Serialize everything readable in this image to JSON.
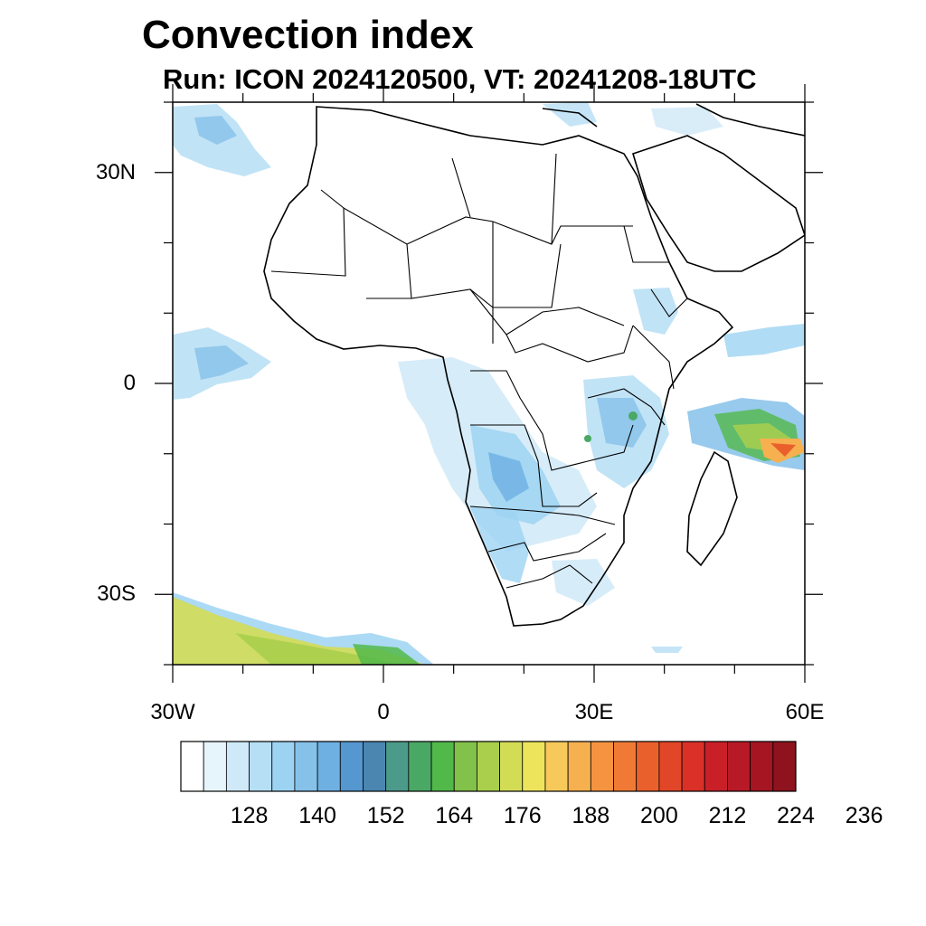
{
  "title": "Convection index",
  "subtitle": "Run: ICON 2024120500,  VT: 20241208-18UTC",
  "map": {
    "lon_range": [
      -30,
      60
    ],
    "lat_range": [
      -40,
      40
    ],
    "x_ticks": [
      {
        "label": "30W",
        "lon": -30
      },
      {
        "label": "0",
        "lon": 0
      },
      {
        "label": "30E",
        "lon": 30
      },
      {
        "label": "60E",
        "lon": 60
      }
    ],
    "y_ticks": [
      {
        "label": "30N",
        "lat": 30
      },
      {
        "label": "0",
        "lat": 0
      },
      {
        "label": "30S",
        "lat": -30
      }
    ]
  },
  "colorbar": {
    "colors": [
      "#ffffff",
      "#e6f4fc",
      "#cfe9f8",
      "#b6def5",
      "#9dd3f2",
      "#86c1ea",
      "#6eb0e2",
      "#5597cf",
      "#4a86b0",
      "#4c9a8a",
      "#4aa865",
      "#52b84a",
      "#82c14a",
      "#a9cf4d",
      "#d3dc55",
      "#eee45c",
      "#f6c95a",
      "#f7b04f",
      "#f59440",
      "#f07a35",
      "#ea602c",
      "#e24628",
      "#d93028",
      "#c92028",
      "#b71a26",
      "#a51622",
      "#8e131e"
    ],
    "labels": [
      "128",
      "140",
      "152",
      "164",
      "176",
      "188",
      "200",
      "212",
      "224",
      "236"
    ]
  }
}
